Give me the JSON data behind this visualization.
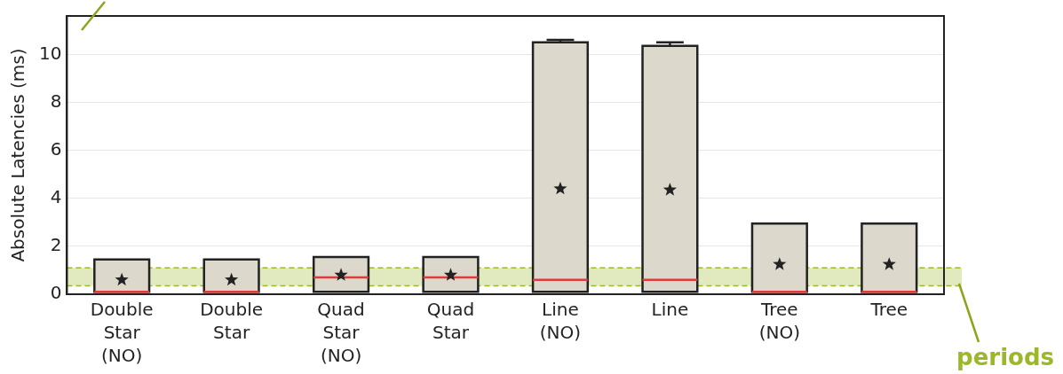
{
  "chart_data": {
    "type": "box",
    "ylabel": "Absolute Latencies (ms)",
    "categories": [
      "Double Star (NO)",
      "Double Star",
      "Quad Star (NO)",
      "Quad Star",
      "Line (NO)",
      "Line",
      "Tree (NO)",
      "Tree"
    ],
    "boxes": [
      {
        "low": 0.1,
        "q1": 0.1,
        "median": 0.1,
        "q3": 1.45,
        "high": 1.45,
        "mean": 0.6
      },
      {
        "low": 0.1,
        "q1": 0.1,
        "median": 0.1,
        "q3": 1.45,
        "high": 1.45,
        "mean": 0.6
      },
      {
        "low": 0.1,
        "q1": 0.1,
        "median": 0.7,
        "q3": 1.55,
        "high": 1.55,
        "mean": 0.8
      },
      {
        "low": 0.1,
        "q1": 0.1,
        "median": 0.7,
        "q3": 1.55,
        "high": 1.55,
        "mean": 0.8
      },
      {
        "low": 0.1,
        "q1": 0.1,
        "median": 0.6,
        "q3": 10.5,
        "high": 10.6,
        "mean": 4.4
      },
      {
        "low": 0.1,
        "q1": 0.1,
        "median": 0.6,
        "q3": 10.35,
        "high": 10.5,
        "mean": 4.35
      },
      {
        "low": 0.1,
        "q1": 0.1,
        "median": 0.1,
        "q3": 2.95,
        "high": 2.95,
        "mean": 1.25
      },
      {
        "low": 0.1,
        "q1": 0.1,
        "median": 0.1,
        "q3": 2.95,
        "high": 2.95,
        "mean": 1.25
      }
    ],
    "color": "#dcd8cc",
    "ylim": [
      0,
      11.6
    ],
    "yticks": [
      0,
      2,
      4,
      6,
      8,
      10
    ],
    "grid": "y",
    "legend": false,
    "marker": "star",
    "bands": [
      {
        "axis": "y",
        "from": 0.35,
        "to": 1.1,
        "label": "periods",
        "color": "#9ab82a"
      }
    ],
    "ref_lines": [
      {
        "axis": "y",
        "value": 0.35,
        "color": "#9ab82a",
        "line_style": "dashed"
      },
      {
        "axis": "y",
        "value": 1.1,
        "color": "#9ab82a",
        "line_style": "dashed"
      }
    ]
  }
}
